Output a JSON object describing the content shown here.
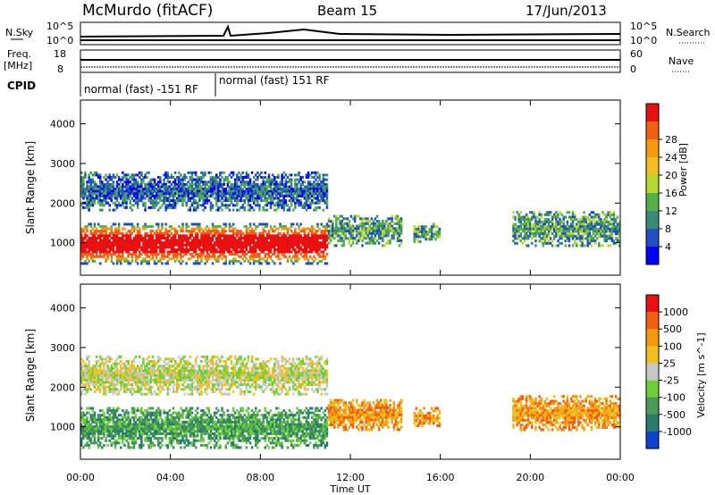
{
  "header": {
    "station": "McMurdo (fitACF)",
    "beam": "Beam 15",
    "date": "17/Jun/2013"
  },
  "left_labels": {
    "nsky": "N.Sky",
    "freq": "Freq.",
    "freq_unit": "[MHz]",
    "cpid": "CPID"
  },
  "right_labels": {
    "nsearch": "N.Search",
    "nave": "Nave"
  },
  "noise_axis": {
    "left_top": "10^5",
    "left_bottom": "10^0",
    "right_top": "10^5",
    "right_bottom": "10^0"
  },
  "freq_axis": {
    "left_top": "18",
    "left_bottom": "8",
    "right_top": "60",
    "right_bottom": "0"
  },
  "cpid_segments": [
    {
      "label": "normal (fast) -151 RF",
      "t_start": 0.0,
      "t_end": 6.0
    },
    {
      "label": "normal (fast) 151 RF",
      "t_start": 6.0,
      "t_end": 24.0
    }
  ],
  "chart_data": [
    {
      "type": "heatmap",
      "panel": "power",
      "ylabel": "Slant Range [km]",
      "xlabel": "Time UT",
      "x_ticks": [
        "00:00",
        "04:00",
        "08:00",
        "12:00",
        "16:00",
        "20:00",
        "00:00"
      ],
      "y_ticks": [
        "1000",
        "2000",
        "3000",
        "4000"
      ],
      "xlim": [
        0,
        24
      ],
      "ylim": [
        180,
        4600
      ],
      "colorbar": {
        "label": "Power [dB]",
        "ticks": [
          "4",
          "8",
          "12",
          "16",
          "20",
          "24",
          "28"
        ],
        "colors": [
          "#0000ff",
          "#1f4fc0",
          "#3a8a7a",
          "#56b04a",
          "#b6d630",
          "#f0c020",
          "#f59a10",
          "#f06010",
          "#e81010"
        ]
      },
      "regions": [
        {
          "t0": 0.0,
          "t1": 11.0,
          "r0": 450,
          "r1": 1500,
          "level": "high"
        },
        {
          "t0": 0.0,
          "t1": 11.0,
          "r0": 1800,
          "r1": 2800,
          "level": "low"
        },
        {
          "t0": 11.0,
          "t1": 14.3,
          "r0": 900,
          "r1": 1700,
          "level": "mid"
        },
        {
          "t0": 14.8,
          "t1": 16.0,
          "r0": 1000,
          "r1": 1500,
          "level": "mid"
        },
        {
          "t0": 19.2,
          "t1": 24.0,
          "r0": 900,
          "r1": 1800,
          "level": "mid"
        }
      ]
    },
    {
      "type": "heatmap",
      "panel": "velocity",
      "ylabel": "Slant Range [km]",
      "xlabel": "Time UT",
      "x_ticks": [
        "00:00",
        "04:00",
        "08:00",
        "12:00",
        "16:00",
        "20:00",
        "00:00"
      ],
      "y_ticks": [
        "1000",
        "2000",
        "3000",
        "4000"
      ],
      "xlim": [
        0,
        24
      ],
      "ylim": [
        180,
        4600
      ],
      "colorbar": {
        "label": "Velocity [m s^-1]",
        "ticks": [
          "1000",
          "500",
          "100",
          "25",
          "-25",
          "-100",
          "-500",
          "-1000"
        ],
        "colors": [
          "#1040d0",
          "#2a7a6e",
          "#4a9a58",
          "#6bd03a",
          "#c8c8c8",
          "#f0c020",
          "#f59a10",
          "#f06010",
          "#e81010"
        ]
      },
      "regions": [
        {
          "t0": 0.0,
          "t1": 11.0,
          "r0": 450,
          "r1": 1500,
          "level": "green"
        },
        {
          "t0": 0.0,
          "t1": 11.0,
          "r0": 1800,
          "r1": 2800,
          "level": "grey"
        },
        {
          "t0": 11.0,
          "t1": 14.3,
          "r0": 900,
          "r1": 1700,
          "level": "orange"
        },
        {
          "t0": 14.8,
          "t1": 16.0,
          "r0": 1000,
          "r1": 1500,
          "level": "orange"
        },
        {
          "t0": 19.2,
          "t1": 24.0,
          "r0": 900,
          "r1": 1800,
          "level": "orange"
        }
      ]
    }
  ]
}
